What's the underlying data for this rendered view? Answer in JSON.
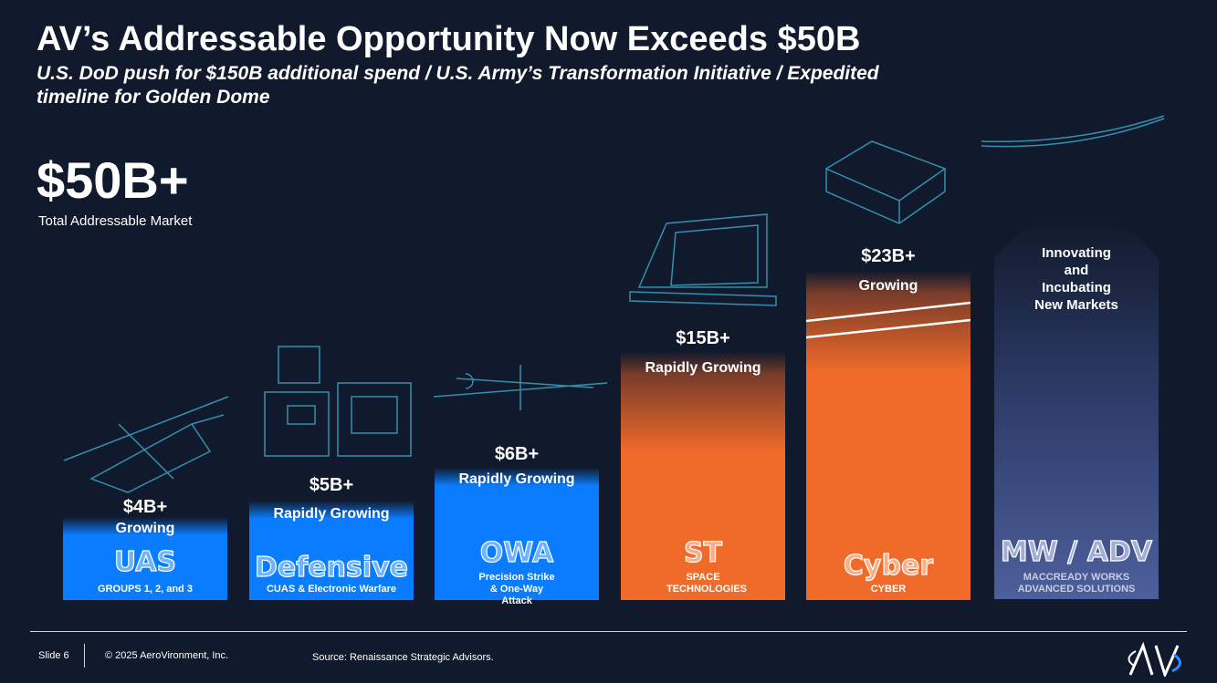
{
  "title": "AV’s Addressable Opportunity Now Exceeds $50B",
  "subtitle": "U.S. DoD push for $150B additional spend / U.S. Army’s Transformation Initiative / Expedited timeline for Golden Dome",
  "tam": {
    "value": "$50B+",
    "label": "Total Addressable Market"
  },
  "segments": [
    {
      "value": "$4B+",
      "growth": "Growing",
      "name": "UAS",
      "desc": "GROUPS 1, 2, and 3"
    },
    {
      "value": "$5B+",
      "growth": "Rapidly Growing",
      "name": "Defensive",
      "desc": "CUAS & Electronic Warfare"
    },
    {
      "value": "$6B+",
      "growth": "Rapidly Growing",
      "name": "OWA",
      "desc": "Precision Strike & One-Way Attack"
    },
    {
      "value": "$15B+",
      "growth": "Rapidly Growing",
      "name": "ST",
      "desc": "SPACE TECHNOLOGIES"
    },
    {
      "value": "$23B+",
      "growth": "Growing",
      "name": "Cyber",
      "desc": "CYBER"
    },
    {
      "growth": "Innovating and Incubating New Markets",
      "name": "MW / ADV",
      "desc": "MACCREADY WORKS ADVANCED SOLUTIONS"
    }
  ],
  "footer": {
    "slide": "Slide 6",
    "copyright": "© 2025 AeroVironment, Inc.",
    "source": "Source: Renaissance Strategic Advisors.",
    "logo": "AV"
  },
  "colors": {
    "background": "#111a2c",
    "blue": "#0a7cff",
    "orange": "#f06a2a"
  }
}
